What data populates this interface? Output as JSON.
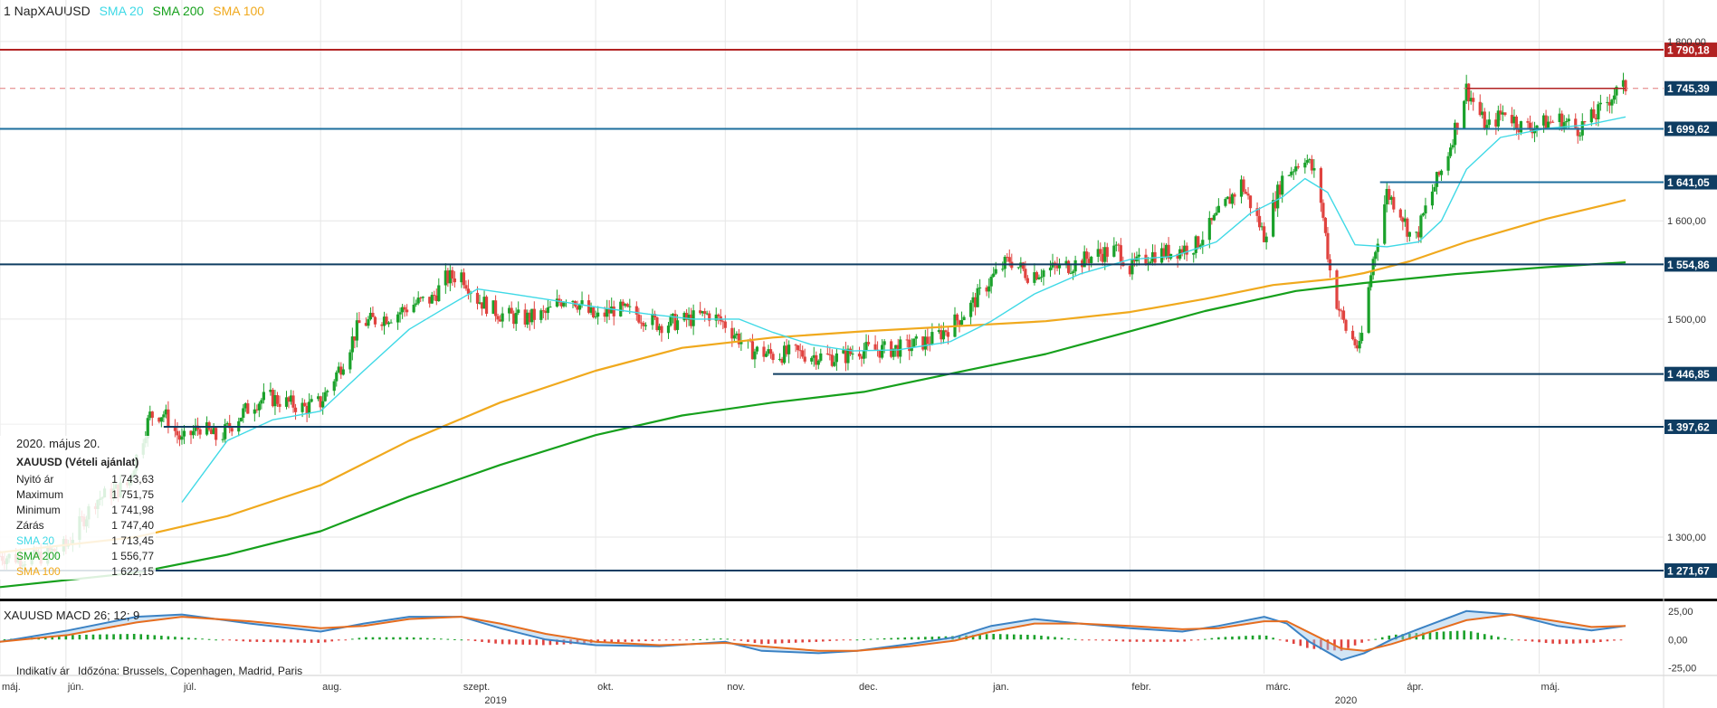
{
  "header": {
    "title": "1 NapXAUUSD",
    "legend": [
      {
        "label": "SMA 20",
        "color": "#3fd9e6"
      },
      {
        "label": "SMA 200",
        "color": "#16a01c"
      },
      {
        "label": "SMA 100",
        "color": "#f0a91d"
      }
    ]
  },
  "tooltip": {
    "date": "2020. május 20.",
    "symbol": "XAUUSD (Vételi ajánlat)",
    "rows": [
      {
        "label": "Nyitó ár",
        "value": "1 743,63",
        "color": "#222222"
      },
      {
        "label": "Maximum",
        "value": "1 751,75",
        "color": "#222222"
      },
      {
        "label": "Minimum",
        "value": "1 741,98",
        "color": "#222222"
      },
      {
        "label": "Zárás",
        "value": "1 747,40",
        "color": "#222222"
      },
      {
        "label": "SMA 20",
        "value": "1 713,45",
        "color": "#3fd9e6"
      },
      {
        "label": "SMA 200",
        "value": "1 556,77",
        "color": "#16a01c"
      },
      {
        "label": "SMA 100",
        "value": "1 622,15",
        "color": "#f0a91d"
      }
    ]
  },
  "macd_title": "XAUUSD  MACD 26; 12; 9",
  "footer_note": [
    "Indikatív ár",
    "Időzóna: Brussels, Copenhagen, Madrid, Paris"
  ],
  "chart_data": {
    "type": "candlestick",
    "y_axis": {
      "scale": "log",
      "range": [
        1250,
        1830
      ],
      "ticks": [
        "1 800,00",
        "1 600,00",
        "1 500,00",
        "1 300,00"
      ],
      "tick_values": [
        1800,
        1600,
        1500,
        1300
      ]
    },
    "x_axis": {
      "months": [
        {
          "label": "máj.",
          "day": 0
        },
        {
          "label": "jún.",
          "day": 29
        },
        {
          "label": "júl.",
          "day": 80
        },
        {
          "label": "aug.",
          "day": 141
        },
        {
          "label": "szept.",
          "day": 203
        },
        {
          "label": "okt.",
          "day": 262
        },
        {
          "label": "nov.",
          "day": 319
        },
        {
          "label": "dec.",
          "day": 377
        },
        {
          "label": "jan.",
          "day": 436
        },
        {
          "label": "febr.",
          "day": 497
        },
        {
          "label": "márc.",
          "day": 556
        },
        {
          "label": "ápr.",
          "day": 618
        },
        {
          "label": "máj.",
          "day": 677
        }
      ],
      "years": [
        {
          "label": "2019",
          "day": 218
        },
        {
          "label": "2020",
          "day": 592
        }
      ],
      "last_day": 715
    },
    "levels": [
      {
        "value": 1790.18,
        "label": "1 790,18",
        "line": "#b22222",
        "box": "#b22222",
        "dashed": false
      },
      {
        "value": 1745.39,
        "label": "1 745,39",
        "line": "#e07a7a",
        "box": "#0f3d62",
        "dashed": true
      },
      {
        "value": 1699.62,
        "label": "1 699,62",
        "line": "#1d6f9e",
        "box": "#0f3d62",
        "dashed": false
      },
      {
        "value": 1641.05,
        "label": "1 641,05",
        "line": "#1d6f9e",
        "box": "#0f3d62",
        "dashed": false,
        "from_day": 607
      },
      {
        "value": 1554.86,
        "label": "1 554,86",
        "line": "#0f3d62",
        "box": "#0f3d62",
        "dashed": false
      },
      {
        "value": 1446.85,
        "label": "1 446,85",
        "line": "#0f3d62",
        "box": "#0f3d62",
        "dashed": false,
        "from_day": 340
      },
      {
        "value": 1397.62,
        "label": "1 397,62",
        "line": "#0f3d62",
        "box": "#0f3d62",
        "dashed": false,
        "from_day": 72
      },
      {
        "value": 1271.67,
        "label": "1 271,67",
        "line": "#0f3d62",
        "box": "#0f3d62",
        "dashed": false
      }
    ],
    "extra_segments": [
      {
        "from_day": 645,
        "to_day": 715,
        "value": 1745.39,
        "color": "#b22222"
      }
    ],
    "close_path": [
      [
        0,
        1284
      ],
      [
        14,
        1281
      ],
      [
        29,
        1292
      ],
      [
        42,
        1332
      ],
      [
        56,
        1345
      ],
      [
        66,
        1408
      ],
      [
        72,
        1410
      ],
      [
        80,
        1384
      ],
      [
        88,
        1398
      ],
      [
        96,
        1386
      ],
      [
        104,
        1405
      ],
      [
        112,
        1420
      ],
      [
        118,
        1425
      ],
      [
        126,
        1420
      ],
      [
        134,
        1415
      ],
      [
        141,
        1420
      ],
      [
        150,
        1455
      ],
      [
        158,
        1495
      ],
      [
        166,
        1500
      ],
      [
        174,
        1505
      ],
      [
        182,
        1515
      ],
      [
        190,
        1520
      ],
      [
        196,
        1540
      ],
      [
        203,
        1545
      ],
      [
        210,
        1520
      ],
      [
        220,
        1505
      ],
      [
        230,
        1500
      ],
      [
        240,
        1505
      ],
      [
        250,
        1525
      ],
      [
        262,
        1500
      ],
      [
        270,
        1510
      ],
      [
        280,
        1505
      ],
      [
        290,
        1495
      ],
      [
        300,
        1498
      ],
      [
        312,
        1505
      ],
      [
        319,
        1495
      ],
      [
        330,
        1470
      ],
      [
        340,
        1465
      ],
      [
        350,
        1467
      ],
      [
        360,
        1464
      ],
      [
        370,
        1462
      ],
      [
        377,
        1470
      ],
      [
        388,
        1470
      ],
      [
        398,
        1472
      ],
      [
        410,
        1480
      ],
      [
        418,
        1493
      ],
      [
        426,
        1510
      ],
      [
        436,
        1540
      ],
      [
        444,
        1560
      ],
      [
        452,
        1545
      ],
      [
        462,
        1550
      ],
      [
        472,
        1555
      ],
      [
        482,
        1565
      ],
      [
        492,
        1570
      ],
      [
        497,
        1550
      ],
      [
        506,
        1565
      ],
      [
        516,
        1568
      ],
      [
        526,
        1575
      ],
      [
        534,
        1600
      ],
      [
        546,
        1640
      ],
      [
        556,
        1585
      ],
      [
        564,
        1645
      ],
      [
        574,
        1670
      ],
      [
        580,
        1640
      ],
      [
        586,
        1530
      ],
      [
        592,
        1490
      ],
      [
        598,
        1470
      ],
      [
        604,
        1560
      ],
      [
        610,
        1630
      ],
      [
        616,
        1610
      ],
      [
        622,
        1575
      ],
      [
        628,
        1620
      ],
      [
        636,
        1665
      ],
      [
        645,
        1745
      ],
      [
        654,
        1700
      ],
      [
        662,
        1720
      ],
      [
        670,
        1700
      ],
      [
        678,
        1705
      ],
      [
        686,
        1710
      ],
      [
        694,
        1700
      ],
      [
        702,
        1715
      ],
      [
        710,
        1740
      ],
      [
        715,
        1747
      ]
    ],
    "sma20": [
      [
        80,
        1330
      ],
      [
        100,
        1385
      ],
      [
        120,
        1404
      ],
      [
        141,
        1412
      ],
      [
        160,
        1450
      ],
      [
        180,
        1490
      ],
      [
        195,
        1510
      ],
      [
        210,
        1530
      ],
      [
        225,
        1525
      ],
      [
        245,
        1518
      ],
      [
        262,
        1512
      ],
      [
        285,
        1505
      ],
      [
        305,
        1500
      ],
      [
        325,
        1500
      ],
      [
        340,
        1487
      ],
      [
        357,
        1475
      ],
      [
        375,
        1469
      ],
      [
        395,
        1470
      ],
      [
        418,
        1478
      ],
      [
        436,
        1498
      ],
      [
        455,
        1525
      ],
      [
        475,
        1545
      ],
      [
        497,
        1560
      ],
      [
        516,
        1563
      ],
      [
        535,
        1578
      ],
      [
        550,
        1608
      ],
      [
        564,
        1625
      ],
      [
        574,
        1645
      ],
      [
        584,
        1630
      ],
      [
        596,
        1575
      ],
      [
        610,
        1573
      ],
      [
        624,
        1578
      ],
      [
        634,
        1600
      ],
      [
        645,
        1655
      ],
      [
        660,
        1690
      ],
      [
        680,
        1700
      ],
      [
        698,
        1704
      ],
      [
        715,
        1713
      ]
    ],
    "sma100": [
      [
        0,
        1287
      ],
      [
        60,
        1300
      ],
      [
        100,
        1318
      ],
      [
        141,
        1345
      ],
      [
        180,
        1385
      ],
      [
        220,
        1420
      ],
      [
        262,
        1450
      ],
      [
        300,
        1472
      ],
      [
        340,
        1482
      ],
      [
        380,
        1488
      ],
      [
        420,
        1493
      ],
      [
        460,
        1498
      ],
      [
        497,
        1507
      ],
      [
        530,
        1520
      ],
      [
        560,
        1534
      ],
      [
        586,
        1540
      ],
      [
        600,
        1546
      ],
      [
        620,
        1558
      ],
      [
        645,
        1578
      ],
      [
        680,
        1602
      ],
      [
        715,
        1622
      ]
    ],
    "sma200": [
      [
        0,
        1258
      ],
      [
        60,
        1270
      ],
      [
        100,
        1285
      ],
      [
        141,
        1305
      ],
      [
        180,
        1335
      ],
      [
        220,
        1363
      ],
      [
        262,
        1390
      ],
      [
        300,
        1408
      ],
      [
        340,
        1420
      ],
      [
        380,
        1430
      ],
      [
        420,
        1448
      ],
      [
        460,
        1466
      ],
      [
        497,
        1488
      ],
      [
        530,
        1508
      ],
      [
        570,
        1528
      ],
      [
        600,
        1536
      ],
      [
        640,
        1545
      ],
      [
        680,
        1552
      ],
      [
        715,
        1557
      ]
    ],
    "macd": {
      "y_ticks": [
        "25,00",
        "0,00",
        "-25,00"
      ],
      "y_tick_values": [
        25,
        0,
        -25
      ],
      "range": [
        -30,
        32
      ],
      "macd_line": [
        [
          0,
          -2
        ],
        [
          30,
          8
        ],
        [
          60,
          20
        ],
        [
          80,
          22
        ],
        [
          110,
          14
        ],
        [
          141,
          7
        ],
        [
          160,
          14
        ],
        [
          180,
          20
        ],
        [
          203,
          20
        ],
        [
          220,
          10
        ],
        [
          240,
          0
        ],
        [
          262,
          -5
        ],
        [
          290,
          -6
        ],
        [
          319,
          -2
        ],
        [
          335,
          -10
        ],
        [
          360,
          -12
        ],
        [
          377,
          -10
        ],
        [
          400,
          -4
        ],
        [
          420,
          2
        ],
        [
          436,
          12
        ],
        [
          455,
          18
        ],
        [
          475,
          14
        ],
        [
          497,
          10
        ],
        [
          520,
          7
        ],
        [
          536,
          12
        ],
        [
          556,
          20
        ],
        [
          566,
          14
        ],
        [
          576,
          -2
        ],
        [
          590,
          -18
        ],
        [
          600,
          -12
        ],
        [
          612,
          0
        ],
        [
          625,
          10
        ],
        [
          645,
          25
        ],
        [
          665,
          22
        ],
        [
          685,
          12
        ],
        [
          700,
          8
        ],
        [
          715,
          12
        ]
      ],
      "signal_line": [
        [
          0,
          -2
        ],
        [
          30,
          4
        ],
        [
          60,
          15
        ],
        [
          80,
          20
        ],
        [
          110,
          16
        ],
        [
          141,
          10
        ],
        [
          160,
          12
        ],
        [
          180,
          18
        ],
        [
          203,
          20
        ],
        [
          220,
          14
        ],
        [
          240,
          5
        ],
        [
          262,
          -2
        ],
        [
          290,
          -5
        ],
        [
          319,
          -3
        ],
        [
          335,
          -6
        ],
        [
          360,
          -10
        ],
        [
          377,
          -10
        ],
        [
          400,
          -6
        ],
        [
          420,
          -1
        ],
        [
          436,
          7
        ],
        [
          455,
          14
        ],
        [
          475,
          14
        ],
        [
          497,
          12
        ],
        [
          520,
          9
        ],
        [
          536,
          10
        ],
        [
          556,
          16
        ],
        [
          566,
          16
        ],
        [
          576,
          6
        ],
        [
          590,
          -8
        ],
        [
          600,
          -10
        ],
        [
          612,
          -4
        ],
        [
          625,
          4
        ],
        [
          645,
          17
        ],
        [
          665,
          22
        ],
        [
          685,
          16
        ],
        [
          700,
          11
        ],
        [
          715,
          12
        ]
      ]
    }
  }
}
